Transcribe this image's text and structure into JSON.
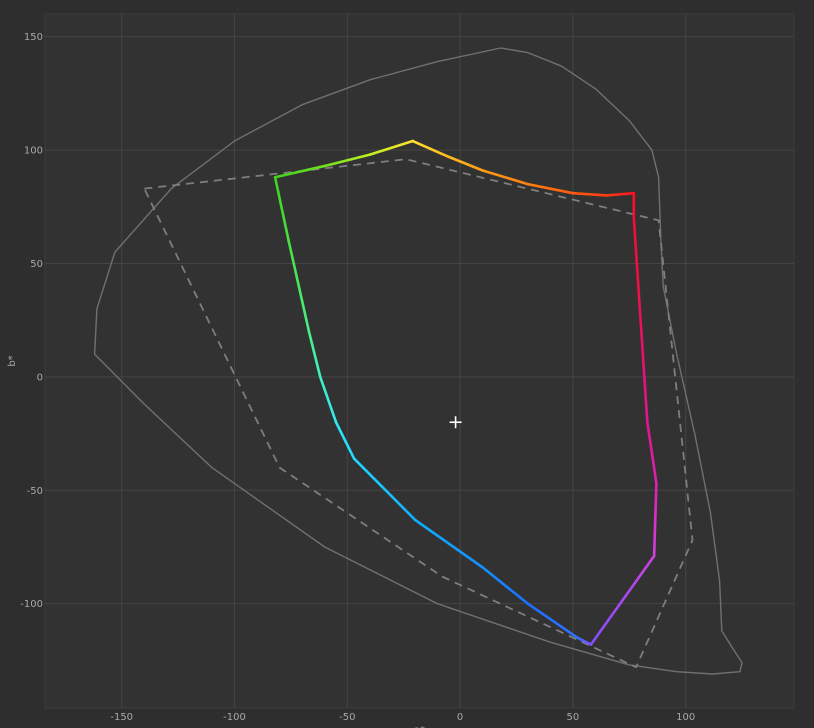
{
  "chart_data": {
    "type": "line",
    "title": "",
    "xlabel": "a*",
    "ylabel": "b*",
    "xlim": [
      -184,
      148
    ],
    "ylim": [
      -146,
      160
    ],
    "x_ticks": [
      -150,
      -100,
      -50,
      0,
      50,
      100
    ],
    "y_ticks": [
      -100,
      -50,
      0,
      50,
      100,
      150
    ],
    "x_tick_labels": [
      "-150",
      "-100",
      "-50",
      "0",
      "50",
      "100"
    ],
    "y_tick_labels": [
      "-100",
      "-50",
      "0",
      "50",
      "100",
      "150"
    ],
    "grid": true,
    "background_color": "#2e2e2e",
    "plot_color": "#323232",
    "white_point": {
      "a": -2,
      "b": -20
    },
    "series": [
      {
        "style": "solid",
        "color": "#707070",
        "points": [
          [
            18,
            145
          ],
          [
            30,
            143
          ],
          [
            45,
            137
          ],
          [
            60,
            127
          ],
          [
            75,
            113
          ],
          [
            85,
            100
          ],
          [
            88,
            88
          ],
          [
            89,
            60
          ],
          [
            90,
            40
          ],
          [
            96,
            10
          ],
          [
            104,
            -25
          ],
          [
            111,
            -60
          ],
          [
            115,
            -90
          ],
          [
            116,
            -112
          ],
          [
            121,
            -120
          ],
          [
            125,
            -126
          ],
          [
            124,
            -130
          ],
          [
            112,
            -131
          ],
          [
            96,
            -130
          ],
          [
            75,
            -127
          ],
          [
            40,
            -117
          ],
          [
            -10,
            -100
          ],
          [
            -60,
            -75
          ],
          [
            -110,
            -40
          ],
          [
            -140,
            -12
          ],
          [
            -162,
            10
          ],
          [
            -161,
            30
          ],
          [
            -153,
            55
          ],
          [
            -128,
            83
          ],
          [
            -100,
            104
          ],
          [
            -70,
            120
          ],
          [
            -40,
            131
          ],
          [
            -10,
            139
          ],
          [
            18,
            145
          ]
        ]
      },
      {
        "style": "dashed",
        "color": "#7e7e7e",
        "points": [
          [
            -140,
            83
          ],
          [
            -24,
            96
          ],
          [
            88,
            69
          ],
          [
            103,
            -72
          ],
          [
            78,
            -128
          ],
          [
            -8,
            -88
          ],
          [
            -80,
            -40
          ],
          [
            -140,
            83
          ]
        ]
      },
      {
        "style": "gradient",
        "points": [
          [
            -21,
            104,
            "#ffe030"
          ],
          [
            -5,
            97,
            "#ffba1a"
          ],
          [
            10,
            91,
            "#ff9d14"
          ],
          [
            30,
            85,
            "#ff8012"
          ],
          [
            50,
            81,
            "#ff5a10"
          ],
          [
            65,
            80,
            "#ff3c12"
          ],
          [
            77,
            81,
            "#ff1020"
          ],
          [
            77,
            70,
            "#f01035"
          ],
          [
            79,
            40,
            "#ec1045"
          ],
          [
            81,
            10,
            "#e81070"
          ],
          [
            83,
            -20,
            "#e21590"
          ],
          [
            87,
            -47,
            "#e020b0"
          ],
          [
            86,
            -79,
            "#d040e0"
          ],
          [
            58,
            -118,
            "#8050ff"
          ],
          [
            52,
            -115,
            "#3070ff"
          ],
          [
            30,
            -100,
            "#1a70ff"
          ],
          [
            10,
            -84,
            "#1490ff"
          ],
          [
            -20,
            -63,
            "#10b0ff"
          ],
          [
            -47,
            -36,
            "#20d8ff"
          ],
          [
            -55,
            -20,
            "#30e8f0"
          ],
          [
            -62,
            0,
            "#40f0c0"
          ],
          [
            -67,
            20,
            "#48f080"
          ],
          [
            -76,
            60,
            "#48e040"
          ],
          [
            -82,
            88,
            "#40d020"
          ],
          [
            -60,
            93,
            "#70e020"
          ],
          [
            -40,
            98,
            "#c0f020"
          ],
          [
            -21,
            104,
            "#ffe030"
          ]
        ]
      }
    ]
  }
}
